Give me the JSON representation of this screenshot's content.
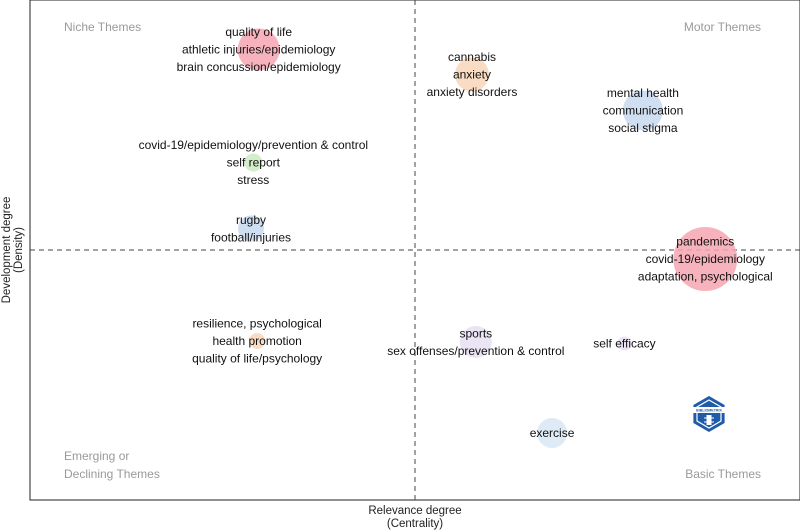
{
  "chart_data": {
    "type": "scatter",
    "title": "",
    "xlabel": "Relevance degree",
    "xlabel_sub": "(Centrality)",
    "ylabel": "Development degree",
    "ylabel_sub": "(Density)",
    "xlim": [
      0,
      100
    ],
    "ylim": [
      0,
      100
    ],
    "x_ref": 50,
    "y_ref": 50,
    "quadrants": {
      "top_left": [
        "Niche Themes"
      ],
      "top_right": [
        "Motor Themes"
      ],
      "bottom_left": [
        "Emerging or",
        "Declining Themes"
      ],
      "bottom_right": [
        "Basic Themes"
      ]
    },
    "clusters": [
      {
        "x": 29.7,
        "y": 90.1,
        "size": 42,
        "color": "#f4a6b2",
        "labels": [
          "quality of life",
          "athletic injuries/epidemiology",
          "brain concussion/epidemiology"
        ]
      },
      {
        "x": 57.4,
        "y": 85.1,
        "size": 34,
        "color": "#f8d6b8",
        "labels": [
          "cannabis",
          "anxiety",
          "anxiety disorders"
        ]
      },
      {
        "x": 79.6,
        "y": 77.9,
        "size": 40,
        "color": "#c7d8ee",
        "labels": [
          "mental health",
          "communication",
          "social stigma"
        ]
      },
      {
        "x": 29.0,
        "y": 67.5,
        "size": 18,
        "color": "#cdeac2",
        "labels": [
          "covid-19/epidemiology/prevention & control",
          "self report",
          "stress"
        ]
      },
      {
        "x": 28.7,
        "y": 54.3,
        "size": 26,
        "color": "#c7d8ee",
        "labels": [
          "rugby",
          "football/injuries"
        ]
      },
      {
        "x": 87.7,
        "y": 48.2,
        "size": 64,
        "color": "#f4a6b2",
        "labels": [
          "pandemics",
          "covid-19/epidemiology",
          "adaptation, psychological"
        ]
      },
      {
        "x": 29.5,
        "y": 31.8,
        "size": 16,
        "color": "#f8d6b8",
        "labels": [
          "resilience, psychological",
          "health promotion",
          "quality of life/psychology"
        ]
      },
      {
        "x": 57.9,
        "y": 31.6,
        "size": 32,
        "color": "#e6dff3",
        "labels": [
          "sports",
          "sex offenses/prevention & control"
        ]
      },
      {
        "x": 77.2,
        "y": 31.3,
        "size": 14,
        "color": "#e6dff3",
        "labels": [
          "self efficacy"
        ]
      },
      {
        "x": 67.8,
        "y": 13.4,
        "size": 30,
        "color": "#d8e6f3",
        "labels": [
          "exercise"
        ]
      }
    ],
    "logo": {
      "text": "BIBLIOMETRIX"
    }
  }
}
